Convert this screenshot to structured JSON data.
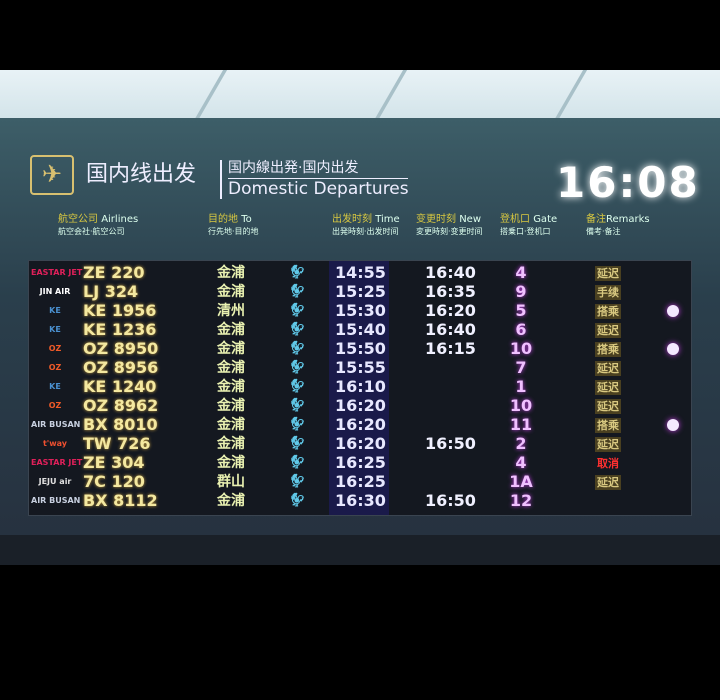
{
  "header": {
    "icon": "departure-plane-icon",
    "title_cn": "国内线出发",
    "subtitle_jp": "国内線出発·国内出发",
    "subtitle_en": "Domestic Departures",
    "clock": "16:08"
  },
  "columns": {
    "airlines": {
      "en": "Airlines",
      "cn": "航空公司",
      "sub": "航空会社·航空公司"
    },
    "to": {
      "en": "To",
      "cn": "目的地",
      "sub": "行先地·目的地"
    },
    "time": {
      "en": "Time",
      "cn": "出发时刻",
      "sub": "出発時刻·出发时间"
    },
    "new": {
      "en": "New",
      "cn": "变更时刻",
      "sub": "変更時刻·变更时间"
    },
    "gate": {
      "en": "Gate",
      "cn": "登机口",
      "sub": "搭乗口·登机口"
    },
    "remarks": {
      "en": "Remarks",
      "cn": "备注",
      "sub": "備考·备注"
    }
  },
  "flights": [
    {
      "logo": "EASTAR JET",
      "logo_color": "#e0205a",
      "flight": "ZE 220",
      "dest": "金浦",
      "time": "14:55",
      "new": "16:40",
      "gate": "4",
      "remark": "延迟",
      "dot": false
    },
    {
      "logo": "JIN AIR",
      "logo_color": "#ffffff",
      "flight": "LJ 324",
      "dest": "金浦",
      "time": "15:25",
      "new": "16:35",
      "gate": "9",
      "remark": "手续",
      "dot": false
    },
    {
      "logo": "KE",
      "logo_color": "#4a90d0",
      "flight": "KE 1956",
      "dest": "清州",
      "time": "15:30",
      "new": "16:20",
      "gate": "5",
      "remark": "搭乘",
      "dot": true
    },
    {
      "logo": "KE",
      "logo_color": "#4a90d0",
      "flight": "KE 1236",
      "dest": "金浦",
      "time": "15:40",
      "new": "16:40",
      "gate": "6",
      "remark": "延迟",
      "dot": false
    },
    {
      "logo": "OZ",
      "logo_color": "#f05a28",
      "flight": "OZ 8950",
      "dest": "金浦",
      "time": "15:50",
      "new": "16:15",
      "gate": "10",
      "remark": "搭乘",
      "dot": true
    },
    {
      "logo": "OZ",
      "logo_color": "#f05a28",
      "flight": "OZ 8956",
      "dest": "金浦",
      "time": "15:55",
      "new": "",
      "gate": "7",
      "remark": "延迟",
      "dot": false
    },
    {
      "logo": "KE",
      "logo_color": "#4a90d0",
      "flight": "KE 1240",
      "dest": "金浦",
      "time": "16:10",
      "new": "",
      "gate": "1",
      "remark": "延迟",
      "dot": false
    },
    {
      "logo": "OZ",
      "logo_color": "#f05a28",
      "flight": "OZ 8962",
      "dest": "金浦",
      "time": "16:20",
      "new": "",
      "gate": "10",
      "remark": "延迟",
      "dot": false
    },
    {
      "logo": "AIR BUSAN",
      "logo_color": "#c8d0e0",
      "flight": "BX 8010",
      "dest": "金浦",
      "time": "16:20",
      "new": "",
      "gate": "11",
      "remark": "搭乘",
      "dot": true
    },
    {
      "logo": "t'way",
      "logo_color": "#f05030",
      "flight": "TW 726",
      "dest": "金浦",
      "time": "16:20",
      "new": "16:50",
      "gate": "2",
      "remark": "延迟",
      "dot": false
    },
    {
      "logo": "EASTAR JET",
      "logo_color": "#e0205a",
      "flight": "ZE 304",
      "dest": "金浦",
      "time": "16:25",
      "new": "",
      "gate": "4",
      "remark": "取消",
      "dot": false
    },
    {
      "logo": "JEJU air",
      "logo_color": "#e0e0e0",
      "flight": "7C 120",
      "dest": "群山",
      "time": "16:25",
      "new": "",
      "gate": "1A",
      "remark": "延迟",
      "dot": false
    },
    {
      "logo": "AIR BUSAN",
      "logo_color": "#c8d0e0",
      "flight": "BX 8112",
      "dest": "金浦",
      "time": "16:30",
      "new": "16:50",
      "gate": "12",
      "remark": "",
      "dot": false
    }
  ]
}
